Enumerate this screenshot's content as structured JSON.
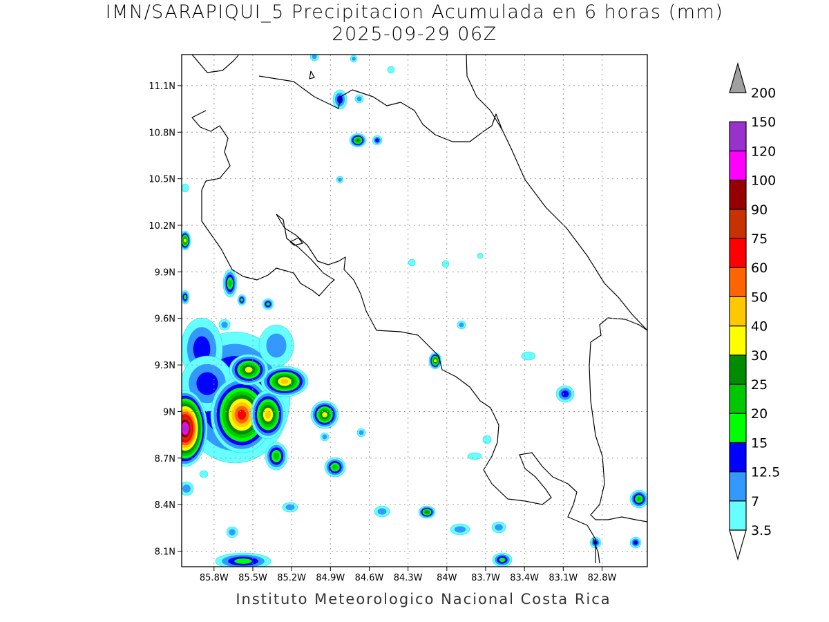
{
  "title": {
    "line1": "IMN/SARAPIQUI_5 Precipitacion Acumulada en 6 horas (mm)",
    "line2": "2025-09-29 06Z"
  },
  "footer": "Instituto Meteorologico Nacional Costa Rica",
  "map": {
    "lon_range": [
      -86.05,
      -82.45
    ],
    "lat_range": [
      8.0,
      11.3
    ],
    "lat_ticks": [
      {
        "value": 11.1,
        "label": "11.1N"
      },
      {
        "value": 10.8,
        "label": "10.8N"
      },
      {
        "value": 10.5,
        "label": "10.5N"
      },
      {
        "value": 10.2,
        "label": "10.2N"
      },
      {
        "value": 9.9,
        "label": "9.9N"
      },
      {
        "value": 9.6,
        "label": "9.6N"
      },
      {
        "value": 9.3,
        "label": "9.3N"
      },
      {
        "value": 9.0,
        "label": "9N"
      },
      {
        "value": 8.7,
        "label": "8.7N"
      },
      {
        "value": 8.4,
        "label": "8.4N"
      },
      {
        "value": 8.1,
        "label": "8.1N"
      }
    ],
    "lon_ticks": [
      {
        "value": -85.8,
        "label": "85.8W"
      },
      {
        "value": -85.5,
        "label": "85.5W"
      },
      {
        "value": -85.2,
        "label": "85.2W"
      },
      {
        "value": -84.9,
        "label": "84.9W"
      },
      {
        "value": -84.6,
        "label": "84.6W"
      },
      {
        "value": -84.3,
        "label": "84.3W"
      },
      {
        "value": -84.0,
        "label": "84W"
      },
      {
        "value": -83.7,
        "label": "83.7W"
      },
      {
        "value": -83.4,
        "label": "83.4W"
      },
      {
        "value": -83.1,
        "label": "83.1W"
      },
      {
        "value": -82.8,
        "label": "82.8W"
      }
    ],
    "grid": true
  },
  "colorbar": {
    "levels": [
      {
        "label": "3.5",
        "color": "#66ffff"
      },
      {
        "label": "7",
        "color": "#3399ff"
      },
      {
        "label": "12.5",
        "color": "#0000ff"
      },
      {
        "label": "15",
        "color": "#00ff00"
      },
      {
        "label": "20",
        "color": "#00c800"
      },
      {
        "label": "25",
        "color": "#008c00"
      },
      {
        "label": "30",
        "color": "#ffff00"
      },
      {
        "label": "40",
        "color": "#ffc800"
      },
      {
        "label": "50",
        "color": "#ff6400"
      },
      {
        "label": "60",
        "color": "#ff0000"
      },
      {
        "label": "75",
        "color": "#c83200"
      },
      {
        "label": "90",
        "color": "#960000"
      },
      {
        "label": "100",
        "color": "#ff00ff"
      },
      {
        "label": "120",
        "color": "#9932cc"
      },
      {
        "label": "150",
        "color": "#f5f5f5"
      },
      {
        "label": "200",
        "color": "#a0a0a0"
      }
    ]
  }
}
